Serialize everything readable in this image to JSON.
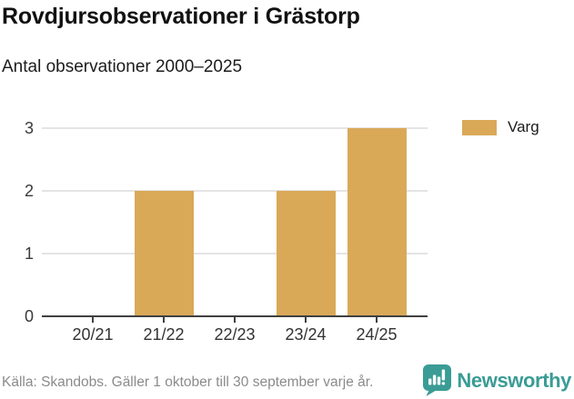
{
  "title": "Rovdjursobservationer i Grästorp",
  "subtitle": "Antal observationer 2000–2025",
  "source": "Källa: Skandobs. Gäller 1 oktober till 30 september varje år.",
  "legend": [
    {
      "label": "Varg",
      "color": "#D9A958"
    }
  ],
  "branding": {
    "name": "Newsworthy",
    "icon": "newsworthy-chart-bubble-icon",
    "color": "#3A9C95"
  },
  "colors": {
    "bar": "#D9A958",
    "gridline": "#e4e4e4",
    "axis": "#404040",
    "source_text": "#8b8b8b",
    "brand_teal": "#3A9C95"
  },
  "chart_data": {
    "type": "bar",
    "categories": [
      "20/21",
      "21/22",
      "22/23",
      "23/24",
      "24/25"
    ],
    "series": [
      {
        "name": "Varg",
        "values": [
          0,
          2,
          0,
          2,
          3
        ],
        "color": "#D9A958"
      }
    ],
    "title": "Rovdjursobservationer i Grästorp",
    "subtitle": "Antal observationer 2000–2025",
    "xlabel": "",
    "ylabel": "",
    "ylim": [
      0,
      3
    ],
    "yticks": [
      0,
      1,
      2,
      3
    ],
    "grid": true,
    "legend_position": "top-right"
  }
}
